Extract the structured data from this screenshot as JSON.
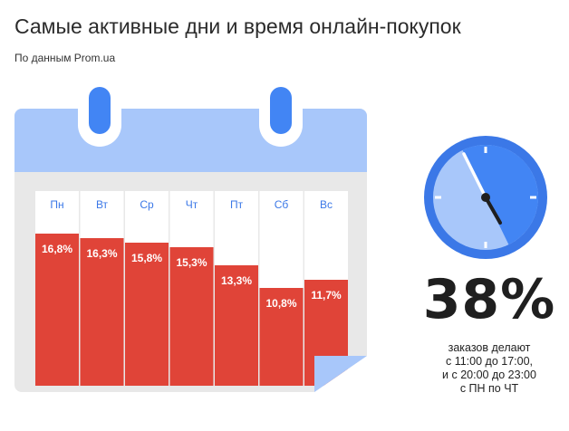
{
  "header": {
    "title": "Самые активные дни и время онлайн-покупок",
    "subtitle": "По данным Prom.ua"
  },
  "chart_data": {
    "type": "bar",
    "categories": [
      "Пн",
      "Вт",
      "Ср",
      "Чт",
      "Пт",
      "Сб",
      "Вс"
    ],
    "values": [
      16.8,
      16.3,
      15.8,
      15.3,
      13.3,
      10.8,
      11.7
    ],
    "value_labels": [
      "16,8%",
      "16,3%",
      "15,8%",
      "15,3%",
      "13,3%",
      "10,8%",
      "11,7%"
    ],
    "ylim": [
      0,
      21.5
    ],
    "bar_color": "#e04438",
    "category_color": "#3b78e7"
  },
  "stat": {
    "value": "38%",
    "note_lines": [
      "заказов делают",
      "с 11:00 до 17:00,",
      "и с 20:00 до 23:00",
      "с ПН по ЧТ"
    ]
  },
  "colors": {
    "calendar_header": "#a8c7fa",
    "calendar_body": "#e8e8e8",
    "ring": "#3b78e7",
    "page_curl": "#a8c7fa",
    "clock_face": "#a8c7fa",
    "clock_sector": "#4285f4"
  }
}
